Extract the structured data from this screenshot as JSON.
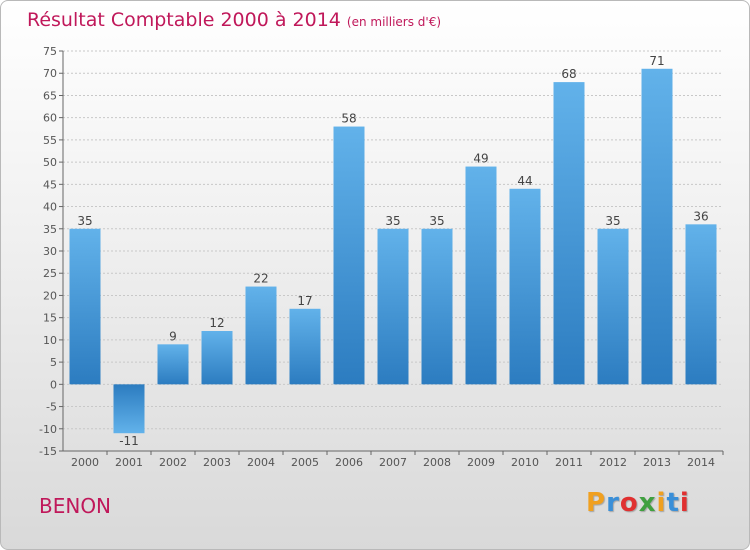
{
  "chart_data": {
    "type": "bar",
    "title": "Résultat Comptable 2000 à 2014",
    "subtitle": "(en milliers d'€)",
    "categories": [
      "2000",
      "2001",
      "2002",
      "2003",
      "2004",
      "2005",
      "2006",
      "2007",
      "2008",
      "2009",
      "2010",
      "2011",
      "2012",
      "2013",
      "2014"
    ],
    "values": [
      35,
      -11,
      9,
      12,
      22,
      17,
      58,
      35,
      35,
      49,
      44,
      68,
      35,
      71,
      36
    ],
    "ylim": [
      -15,
      75
    ],
    "yticks": [
      -15,
      -10,
      -5,
      0,
      5,
      10,
      15,
      20,
      25,
      30,
      35,
      40,
      45,
      50,
      55,
      60,
      65,
      70,
      75
    ],
    "grid": true,
    "xlabel": "",
    "ylabel": ""
  },
  "commune": "BENON",
  "logo": {
    "letters": [
      "P",
      "r",
      "o",
      "x",
      "i",
      "t",
      "i"
    ],
    "colors": [
      "#f0a020",
      "#3a8fd8",
      "#e03030",
      "#40a040",
      "#f0a020",
      "#3a8fd8",
      "#e03030"
    ]
  },
  "colors": {
    "bar_top": "#62b2ea",
    "bar_bottom": "#2c7cc0",
    "accent": "#c0185a"
  }
}
